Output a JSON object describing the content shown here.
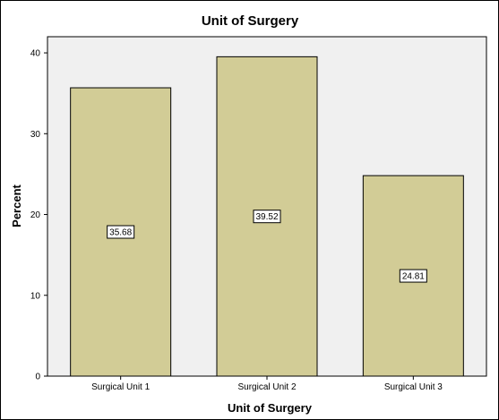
{
  "chart_data": {
    "type": "bar",
    "title": "Unit of Surgery",
    "xlabel": "Unit of Surgery",
    "ylabel": "Percent",
    "categories": [
      "Surgical Unit 1",
      "Surgical Unit 2",
      "Surgical Unit 3"
    ],
    "values": [
      35.68,
      39.52,
      24.81
    ],
    "data_labels": [
      "35.68",
      "39.52",
      "24.81"
    ],
    "ylim": [
      0,
      42
    ],
    "yticks": [
      0,
      10,
      20,
      30,
      40
    ],
    "grid": false,
    "legend": "none",
    "colors": {
      "bar_fill": "#d2cc96",
      "bar_stroke": "#000000",
      "plot_background": "#f0f0f0",
      "label_box": "#ffffff"
    }
  }
}
